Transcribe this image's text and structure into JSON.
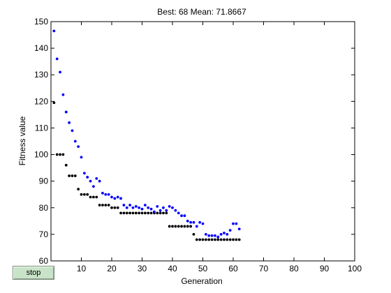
{
  "controls": {
    "stop_label": "stop"
  },
  "colors": {
    "best": "#000000",
    "mean": "#0000ff",
    "axes": "#000000",
    "background": "#ffffff"
  },
  "chart_data": {
    "type": "scatter",
    "title": "Best: 68 Mean: 71.8667",
    "xlabel": "Generation",
    "ylabel": "Fitness value",
    "xlim": [
      0,
      100
    ],
    "ylim": [
      60,
      150
    ],
    "xticks": [
      10,
      20,
      30,
      40,
      50,
      60,
      70,
      80,
      90,
      100
    ],
    "yticks": [
      60,
      70,
      80,
      90,
      100,
      110,
      120,
      130,
      140,
      150
    ],
    "grid": false,
    "legend": "none",
    "series": [
      {
        "color": "#000000",
        "x": [
          1,
          2,
          3,
          4,
          5,
          6,
          7,
          8,
          9,
          10,
          11,
          12,
          13,
          14,
          15,
          16,
          17,
          18,
          19,
          20,
          21,
          22,
          23,
          24,
          25,
          26,
          27,
          28,
          29,
          30,
          31,
          32,
          33,
          34,
          35,
          36,
          37,
          38,
          39,
          40,
          41,
          42,
          43,
          44,
          45,
          46,
          47,
          48,
          49,
          50,
          51,
          52,
          53,
          54,
          55,
          56,
          57,
          58,
          59,
          60,
          61,
          62
        ],
        "values": [
          119.5,
          100,
          100,
          100,
          96,
          92,
          92,
          92,
          87,
          85,
          85,
          85,
          84,
          84,
          84,
          81,
          81,
          81,
          81,
          80,
          80,
          80,
          78,
          78,
          78,
          78,
          78,
          78,
          78,
          78,
          78,
          78,
          78,
          78,
          78,
          78,
          78,
          78,
          73,
          73,
          73,
          73,
          73,
          73,
          73,
          73,
          70,
          68,
          68,
          68,
          68,
          68,
          68,
          68,
          68,
          68,
          68,
          68,
          68,
          68,
          68,
          68
        ]
      },
      {
        "color": "#0000ff",
        "x": [
          1,
          2,
          3,
          4,
          5,
          6,
          7,
          8,
          9,
          10,
          11,
          12,
          13,
          14,
          15,
          16,
          17,
          18,
          19,
          20,
          21,
          22,
          23,
          24,
          25,
          26,
          27,
          28,
          29,
          30,
          31,
          32,
          33,
          34,
          35,
          36,
          37,
          38,
          39,
          40,
          41,
          42,
          43,
          44,
          45,
          46,
          47,
          48,
          49,
          50,
          51,
          52,
          53,
          54,
          55,
          56,
          57,
          58,
          59,
          60,
          61,
          62
        ],
        "values": [
          146.5,
          136,
          131,
          122.5,
          116,
          112,
          109,
          105,
          103,
          99,
          93,
          91.5,
          90,
          88,
          91,
          90,
          85.5,
          85,
          85,
          84,
          83.5,
          84,
          83.5,
          81,
          80,
          81,
          80,
          80.5,
          80,
          79.5,
          81,
          80,
          79.5,
          78.5,
          80.5,
          79,
          80,
          79,
          80.5,
          80,
          79,
          78,
          77,
          77,
          75,
          74.5,
          74.5,
          73,
          74.5,
          74,
          70,
          69.5,
          69.5,
          69.5,
          69,
          70,
          70.5,
          70,
          71.5,
          74,
          74,
          72
        ]
      }
    ]
  }
}
